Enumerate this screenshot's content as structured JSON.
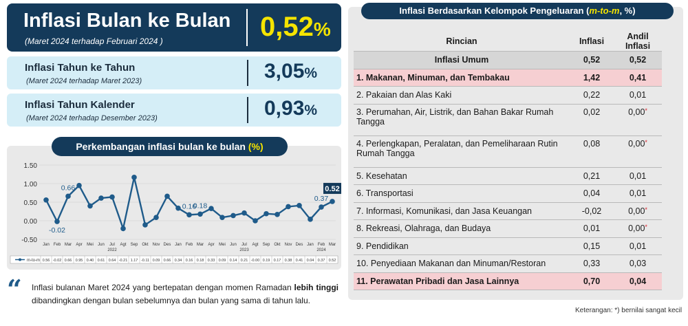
{
  "main_card": {
    "title": "Inflasi Bulan ke Bulan",
    "subtitle": "(Maret 2024 terhadap Februari 2024 )",
    "value": "0,52",
    "unit": "%"
  },
  "yoy_card": {
    "title": "Inflasi Tahun ke Tahun",
    "subtitle": "(Maret 2024 terhadap Maret 2023)",
    "value": "3,05",
    "unit": "%"
  },
  "ytd_card": {
    "title": "Inflasi Tahun Kalender",
    "subtitle": "(Maret 2024 terhadap Desember 2023)",
    "value": "0,93",
    "unit": "%"
  },
  "chart_title": {
    "text": "Perkembangan inflasi bulan ke bulan ",
    "unit": "(%)"
  },
  "chart_data": {
    "type": "line",
    "ylim": [
      -0.5,
      1.5
    ],
    "yticks": [
      "1.50",
      "1.00",
      "0.50",
      "0.00",
      "-0.50"
    ],
    "categories": [
      "Jan",
      "Feb",
      "Mar",
      "Apr",
      "Mei",
      "Jun",
      "Jul",
      "Agt",
      "Sep",
      "Okt",
      "Nov",
      "Des",
      "Jan",
      "Feb",
      "Mar",
      "Apr",
      "Mei",
      "Jun",
      "Jul",
      "Agt",
      "Sep",
      "Okt",
      "Nov",
      "Des",
      "Jan",
      "Feb",
      "Mar"
    ],
    "year_labels": [
      {
        "label": "2022",
        "index": 6
      },
      {
        "label": "2023",
        "index": 18
      },
      {
        "label": "2024",
        "index": 25
      }
    ],
    "series": [
      {
        "name": "m-to-m",
        "color": "#1f5b8a",
        "values": [
          0.56,
          -0.02,
          0.66,
          0.95,
          0.4,
          0.61,
          0.64,
          -0.21,
          1.17,
          -0.11,
          0.09,
          0.66,
          0.34,
          0.16,
          0.18,
          0.33,
          0.09,
          0.14,
          0.21,
          -0.0,
          0.19,
          0.17,
          0.38,
          0.41,
          0.04,
          0.37,
          0.52
        ]
      }
    ],
    "table_values": [
      "0.56",
      "-0.02",
      "0.66",
      "0.95",
      "0.40",
      "0.61",
      "0.64",
      "-0.21",
      "1.17",
      "-0.11",
      "0.09",
      "0.66",
      "0.34",
      "0.16",
      "0.18",
      "0.33",
      "0.09",
      "0.14",
      "0.21",
      "-0.00",
      "0.19",
      "0.17",
      "0.38",
      "0.41",
      "0.04",
      "0.37",
      "0.52"
    ],
    "annotations": [
      {
        "index": 1,
        "text": "-0.02"
      },
      {
        "index": 2,
        "text": "0.66"
      },
      {
        "index": 13,
        "text": "0.16"
      },
      {
        "index": 14,
        "text": "0.18"
      },
      {
        "index": 25,
        "text": "0.37"
      },
      {
        "index": 26,
        "text": "0.52",
        "boxed": true
      }
    ]
  },
  "quote": {
    "text_before": "Inflasi bulanan Maret 2024 yang bertepatan dengan momen Ramadan ",
    "bold": "lebih tinggi",
    "text_after": " dibandingkan dengan bulan sebelumnya dan bulan yang sama di tahun lalu."
  },
  "table": {
    "title": "Inflasi Berdasarkan Kelompok Pengeluaran (",
    "title_italic": "m-to-m",
    "title_end": ", %)",
    "headers": [
      "Rincian",
      "Inflasi",
      "Andil Inflasi"
    ],
    "rows": [
      {
        "label": "Inflasi Umum",
        "inflasi": "0,52",
        "andil": "0,52",
        "style": "gray"
      },
      {
        "label": "1. Makanan, Minuman, dan Tembakau",
        "inflasi": "1,42",
        "andil": "0,41",
        "style": "hl"
      },
      {
        "label": "2. Pakaian dan Alas Kaki",
        "inflasi": "0,22",
        "andil": "0,01"
      },
      {
        "label": "3. Perumahan, Air, Listrik, dan Bahan Bakar Rumah Tangga",
        "inflasi": "0,02",
        "andil": "0,00",
        "star": "*",
        "tall": true
      },
      {
        "label": "4. Perlengkapan, Peralatan, dan Pemeliharaan Rutin Rumah Tangga",
        "inflasi": "0,08",
        "andil": "0,00",
        "star": "*",
        "tall": true
      },
      {
        "label": "5. Kesehatan",
        "inflasi": "0,21",
        "andil": "0,01"
      },
      {
        "label": "6. Transportasi",
        "inflasi": "0,04",
        "andil": "0,01"
      },
      {
        "label": "7. Informasi, Komunikasi, dan Jasa Keuangan",
        "inflasi": "-0,02",
        "andil": "0,00",
        "star": "*"
      },
      {
        "label": "8. Rekreasi, Olahraga, dan Budaya",
        "inflasi": "0,01",
        "andil": "0,00",
        "star": "*"
      },
      {
        "label": "9. Pendidikan",
        "inflasi": "0,15",
        "andil": "0,01"
      },
      {
        "label": "10. Penyediaan Makanan dan Minuman/Restoran",
        "inflasi": "0,33",
        "andil": "0,03"
      },
      {
        "label": "11. Perawatan Pribadi dan Jasa Lainnya",
        "inflasi": "0,70",
        "andil": "0,04",
        "style": "hl"
      }
    ],
    "note": "Keterangan: *) bernilai sangat kecil"
  }
}
